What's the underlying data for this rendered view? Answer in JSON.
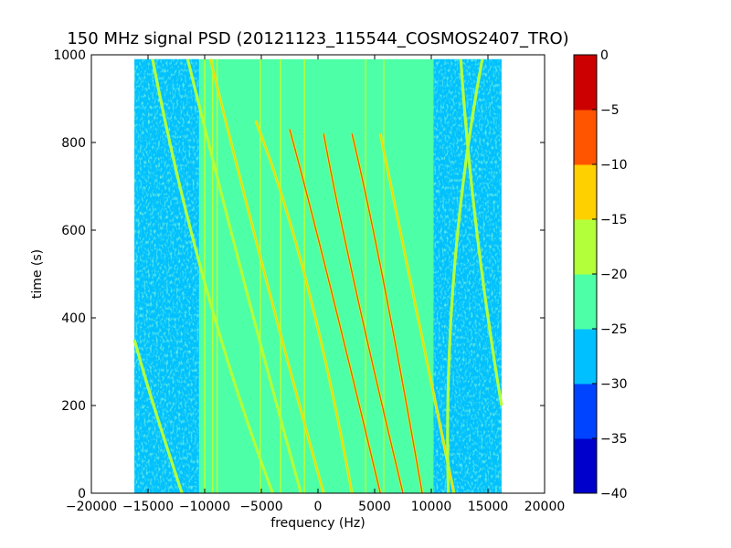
{
  "chart_data": {
    "type": "heatmap",
    "title": "150 MHz signal PSD (20121123_115544_COSMOS2407_TRO)",
    "xlabel": "frequency (Hz)",
    "ylabel": "time (s)",
    "xlim": [
      -20000,
      20000
    ],
    "ylim": [
      0,
      1000
    ],
    "data_extent": {
      "x": [
        -16200,
        16200
      ],
      "y": [
        0,
        990
      ]
    },
    "x_ticks": [
      -20000,
      -15000,
      -10000,
      -5000,
      0,
      5000,
      10000,
      15000,
      20000
    ],
    "x_tick_labels": [
      "−20000",
      "−15000",
      "−10000",
      "−5000",
      "0",
      "5000",
      "10000",
      "15000",
      "20000"
    ],
    "y_ticks": [
      0,
      200,
      400,
      600,
      800,
      1000
    ],
    "y_tick_labels": [
      "0",
      "200",
      "400",
      "600",
      "800",
      "1000"
    ],
    "grid": false,
    "colorbar": {
      "levels": [
        -40,
        -35,
        -30,
        -25,
        -20,
        -15,
        -10,
        -5,
        0
      ],
      "tick_labels": [
        "−40",
        "−35",
        "−30",
        "−25",
        "−20",
        "−15",
        "−10",
        "−5",
        "0"
      ],
      "colors": [
        "#0000cc",
        "#0044ff",
        "#00c0ff",
        "#4dffa6",
        "#b3ff3a",
        "#ffd000",
        "#ff5500",
        "#cc0000"
      ]
    },
    "background_level_range_db": [
      -25,
      -20
    ],
    "noise_band_level_range_db": [
      -30,
      -25
    ],
    "noise_bands_hz": [
      [
        -16200,
        -10500
      ],
      [
        10200,
        16200
      ]
    ],
    "vertical_carriers_hz": [
      -10000,
      -9300,
      -8900,
      -5100,
      -3300,
      -1200,
      4200,
      5800
    ],
    "doppler_traces": [
      {
        "points": [
          [
            -4000,
            0
          ],
          [
            -10000,
            480
          ],
          [
            -14600,
            990
          ]
        ],
        "level": -17
      },
      {
        "points": [
          [
            -1500,
            0
          ],
          [
            -6500,
            480
          ],
          [
            -11500,
            990
          ]
        ],
        "level": -17
      },
      {
        "points": [
          [
            500,
            0
          ],
          [
            -4500,
            480
          ],
          [
            -9500,
            990
          ]
        ],
        "level": -15
      },
      {
        "points": [
          [
            3000,
            0
          ],
          [
            -1000,
            480
          ],
          [
            -5500,
            850
          ]
        ],
        "level": -12
      },
      {
        "points": [
          [
            5500,
            0
          ],
          [
            1000,
            480
          ],
          [
            -2500,
            830
          ]
        ],
        "level": -10
      },
      {
        "points": [
          [
            7500,
            0
          ],
          [
            3200,
            480
          ],
          [
            500,
            820
          ]
        ],
        "level": -8
      },
      {
        "points": [
          [
            9200,
            0
          ],
          [
            5800,
            480
          ],
          [
            3000,
            820
          ]
        ],
        "level": -10
      },
      {
        "points": [
          [
            12000,
            0
          ],
          [
            8200,
            480
          ],
          [
            5500,
            820
          ]
        ],
        "level": -14
      },
      {
        "points": [
          [
            -12000,
            0
          ],
          [
            -14500,
            200
          ],
          [
            -16200,
            350
          ]
        ],
        "level": -18
      },
      {
        "points": [
          [
            14500,
            990
          ],
          [
            12000,
            500
          ],
          [
            11500,
            0
          ]
        ],
        "level": -18
      },
      {
        "points": [
          [
            16200,
            200
          ],
          [
            14000,
            600
          ],
          [
            12600,
            990
          ]
        ],
        "level": -18
      }
    ]
  }
}
